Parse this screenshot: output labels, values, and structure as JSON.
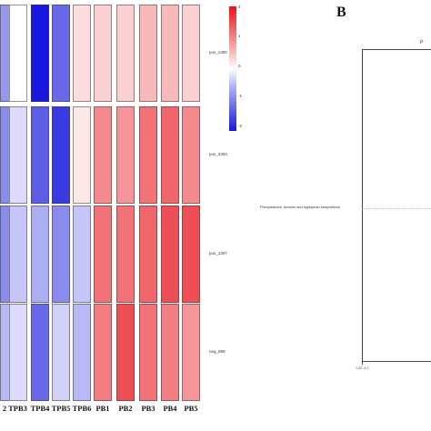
{
  "chart_data": {
    "type": "heatmap",
    "columns": [
      "2",
      "TPB3",
      "TPB4",
      "TPB5",
      "TPB6",
      "PB1",
      "PB2",
      "PB3",
      "PB4",
      "PB5"
    ],
    "rows": [
      "pos_1300",
      "pos_2303",
      "pos_1307",
      "neg_899"
    ],
    "values": [
      [
        -0.9,
        0.0,
        -2.0,
        -1.3,
        0.3,
        0.4,
        0.4,
        0.6,
        0.6,
        0.4
      ],
      [
        -1.0,
        -0.3,
        -1.4,
        -1.7,
        0.2,
        1.0,
        0.9,
        1.2,
        1.3,
        1.0
      ],
      [
        -1.0,
        -0.5,
        -0.7,
        -1.0,
        -0.5,
        1.2,
        1.2,
        1.3,
        1.5,
        1.5
      ],
      [
        -0.6,
        -0.3,
        -1.3,
        -0.4,
        -0.6,
        1.1,
        1.5,
        1.2,
        1.1,
        0.9
      ]
    ],
    "legend": {
      "ticks": [
        "2",
        "1",
        "0",
        "-1",
        "-2"
      ],
      "min": -2,
      "max": 2
    }
  },
  "panel_b": {
    "letter": "B",
    "top_label": "P",
    "pathway": "Phenylalanine, tyrosine and tryptophan biosynthesis",
    "axis_label": "1.0E-4.0"
  },
  "colors": {
    "high": "#e8141c",
    "mid": "#ffffff",
    "low": "#1717dd"
  }
}
